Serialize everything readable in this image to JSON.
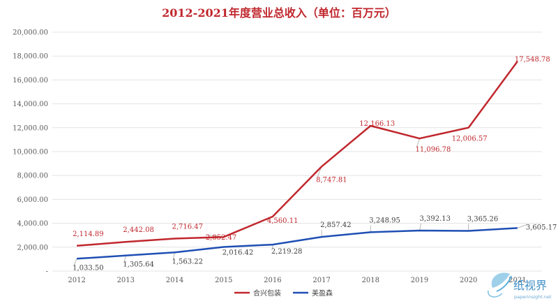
{
  "chart_data": {
    "type": "line",
    "title": "2012-2021年度营业总收入（单位：百万元）",
    "categories": [
      "2012",
      "2013",
      "2014",
      "2015",
      "2016",
      "2017",
      "2018",
      "2019",
      "2020",
      "2021"
    ],
    "ylim": [
      0,
      20000
    ],
    "y_ticks": [
      "-",
      "2,000.00",
      "4,000.00",
      "6,000.00",
      "8,000.00",
      "10,000.00",
      "12,000.00",
      "14,000.00",
      "16,000.00",
      "18,000.00",
      "20,000.00"
    ],
    "grid": true,
    "legend_position": "bottom",
    "series": [
      {
        "name": "合兴包装",
        "color": "#c0272d",
        "values": [
          2114.89,
          2442.08,
          2716.47,
          2852.47,
          4560.11,
          8747.81,
          12166.13,
          11096.78,
          12006.57,
          17548.78
        ],
        "labels": [
          "2,114.89",
          "2,442.08",
          "2,716.47",
          "2,852.47",
          "4,560.11",
          "8,747.81",
          "12,166.13",
          "11,096.78",
          "12,006.57",
          "17,548.78"
        ]
      },
      {
        "name": "美盈森",
        "color": "#1f4fb4",
        "values": [
          1033.5,
          1305.64,
          1563.22,
          2016.42,
          2219.28,
          2857.42,
          3248.95,
          3392.13,
          3365.26,
          3605.17
        ],
        "labels": [
          "1,033.50",
          "1,305.64",
          "1,563.22",
          "2,016.42",
          "2,219.28",
          "2,857.42",
          "3,248.95",
          "3,392.13",
          "3,365.26",
          "3,605.17"
        ]
      }
    ]
  },
  "watermark": {
    "cn": "纸视界",
    "url": "paperinsight.net"
  }
}
